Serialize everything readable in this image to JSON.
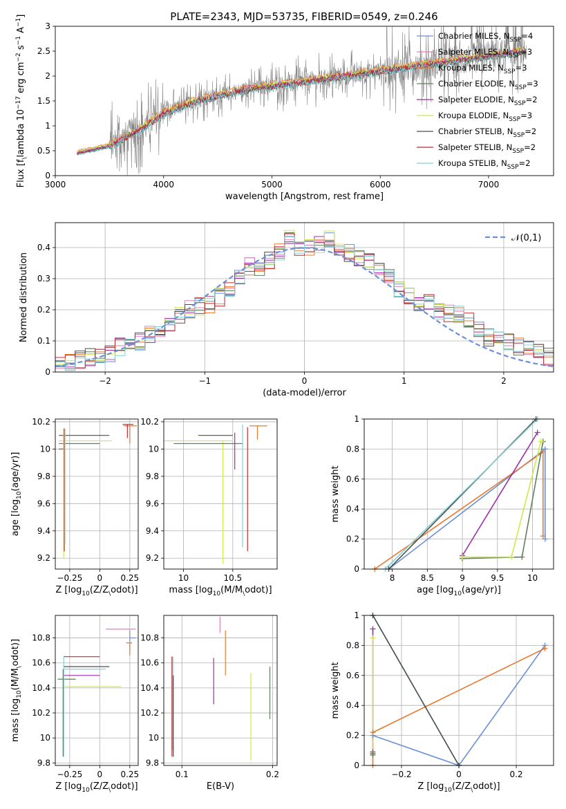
{
  "figure": {
    "title": "PLATE=2343, MJD=53735, FIBERID=0549, z=0.246"
  },
  "chart_data": [
    {
      "id": "spectrum",
      "type": "line",
      "xlabel": "wavelength [Angstrom, rest frame]",
      "ylabel": "Flux [f$_\\lambda$ 10$^{-17}$ erg cm$^{-2}$ s$^{-1}$ A$^{-1}$]",
      "xlim": [
        3000,
        7600
      ],
      "ylim": [
        0,
        3.0
      ],
      "xticks": [
        3000,
        4000,
        5000,
        6000,
        7000
      ],
      "yticks": [
        0.0,
        0.5,
        1.0,
        1.5,
        2.0,
        2.5,
        3.0
      ],
      "grid": false,
      "legend_position": "top-right",
      "data_curve": {
        "color": "#808080",
        "x": [
          3200,
          3500,
          3800,
          4000,
          4300,
          4600,
          4800,
          5000,
          5200,
          5500,
          6000,
          6500,
          7000,
          7300
        ],
        "y": [
          0.45,
          0.6,
          0.95,
          1.25,
          1.5,
          1.65,
          1.75,
          1.8,
          1.85,
          1.95,
          2.1,
          2.25,
          2.4,
          2.5
        ]
      },
      "series": [
        {
          "name": "Chabrier MILES, N$_{SSP}$=4",
          "color": "#6b8fd6",
          "offset": 0.0
        },
        {
          "name": "Salpeter MILES, N$_{SSP}$=3",
          "color": "#e07fbf",
          "offset": 0.02
        },
        {
          "name": "Kroupa MILES, N$_{SSP}$=3",
          "color": "#e8782c",
          "offset": 0.05
        },
        {
          "name": "Chabrier ELODIE, N$_{SSP}$=3",
          "color": "#5f7f5f",
          "offset": -0.03
        },
        {
          "name": "Salpeter ELODIE, N$_{SSP}$=2",
          "color": "#9a2fa8",
          "offset": 0.01
        },
        {
          "name": "Kroupa ELODIE, N$_{SSP}$=3",
          "color": "#cfe84c",
          "offset": 0.03
        },
        {
          "name": "Chabrier STELIB, N$_{SSP}$=2",
          "color": "#4d4d4d",
          "offset": -0.02
        },
        {
          "name": "Salpeter STELIB, N$_{SSP}$=2",
          "color": "#c8282c",
          "offset": -0.01
        },
        {
          "name": "Kroupa STELIB, N$_{SSP}$=2",
          "color": "#7fd3d8",
          "offset": -0.04
        }
      ]
    },
    {
      "id": "residuals",
      "type": "line",
      "xlabel": "(data-model)/error",
      "ylabel": "Normed distribution",
      "xlim": [
        -2.5,
        2.5
      ],
      "ylim": [
        0,
        0.48
      ],
      "xticks": [
        -2,
        -1,
        0,
        1,
        2
      ],
      "yticks": [
        0.0,
        0.1,
        0.2,
        0.3,
        0.4
      ],
      "grid": true,
      "legend_position": "top-right",
      "legend": "$\\mathcal{N}(0,1)$",
      "normal_color": "#6b8fd6",
      "histogram_centers": [
        -2.45,
        -2.35,
        -2.25,
        -2.15,
        -2.05,
        -1.95,
        -1.85,
        -1.75,
        -1.65,
        -1.55,
        -1.45,
        -1.35,
        -1.25,
        -1.15,
        -1.05,
        -0.95,
        -0.85,
        -0.75,
        -0.65,
        -0.55,
        -0.45,
        -0.35,
        -0.25,
        -0.15,
        -0.05,
        0.05,
        0.15,
        0.25,
        0.35,
        0.45,
        0.55,
        0.65,
        0.75,
        0.85,
        0.95,
        1.05,
        1.15,
        1.25,
        1.35,
        1.45,
        1.55,
        1.65,
        1.75,
        1.85,
        1.95,
        2.05,
        2.15,
        2.25,
        2.35,
        2.45
      ],
      "histogram_base": [
        0.02,
        0.03,
        0.04,
        0.05,
        0.05,
        0.06,
        0.08,
        0.09,
        0.1,
        0.12,
        0.13,
        0.15,
        0.18,
        0.2,
        0.21,
        0.22,
        0.24,
        0.26,
        0.3,
        0.34,
        0.33,
        0.36,
        0.39,
        0.43,
        0.4,
        0.4,
        0.41,
        0.43,
        0.39,
        0.38,
        0.37,
        0.35,
        0.33,
        0.3,
        0.27,
        0.24,
        0.22,
        0.22,
        0.2,
        0.19,
        0.19,
        0.16,
        0.14,
        0.11,
        0.1,
        0.1,
        0.08,
        0.07,
        0.06,
        0.05
      ]
    },
    {
      "id": "age-vs-Z",
      "type": "scatter",
      "xlabel": "Z [log$_{10}$(Z/Z$_\\odot$)]",
      "ylabel": "age  [log$_{10}$(age/yr)]",
      "xlim": [
        -0.37,
        0.32
      ],
      "ylim": [
        9.12,
        10.22
      ],
      "xticks": [
        -0.25,
        0.0,
        0.25
      ],
      "yticks": [
        9.2,
        9.4,
        9.6,
        9.8,
        10.0,
        10.2
      ],
      "grid": true,
      "errorbars": [
        {
          "x": -0.3,
          "y": 10.1,
          "xerr": [
            0.04,
            0.38
          ],
          "color": "#4d4d4d"
        },
        {
          "x": -0.3,
          "y": 10.0,
          "xerr": [
            0.04,
            0.0
          ],
          "yerr": [
            0.0,
            0.15
          ],
          "color": "#9a2fa8"
        },
        {
          "x": -0.3,
          "y": 10.06,
          "xerr": [
            0.04,
            0.4
          ],
          "color": "#cfe84c"
        },
        {
          "x": -0.3,
          "y": 10.04,
          "xerr": [
            0.04,
            0.3
          ],
          "color": "#5f7f5f"
        },
        {
          "x": 0.25,
          "y": 10.17,
          "xerr": [
            0.05,
            0.06
          ],
          "yerr": [
            0.13,
            0.0
          ],
          "color": "#e8782c"
        },
        {
          "x": 0.23,
          "y": 10.18,
          "xerr": [
            0.04,
            0.05
          ],
          "yerr": [
            0.1,
            0.0
          ],
          "color": "#c8282c"
        },
        {
          "x": -0.3,
          "y": 9.2,
          "yerr": [
            0.0,
            0.95
          ],
          "color": "#cfe84c"
        },
        {
          "x": -0.295,
          "y": 9.25,
          "yerr": [
            0.0,
            0.9
          ],
          "color": "#c8282c"
        },
        {
          "x": -0.29,
          "y": 9.3,
          "yerr": [
            0.0,
            0.85
          ],
          "color": "#7fd3d8"
        }
      ]
    },
    {
      "id": "age-vs-mass",
      "type": "scatter",
      "xlabel": "mass [log$_{10}$(M/M$_\\odot$)]",
      "ylabel": "",
      "xlim": [
        9.8,
        10.95
      ],
      "ylim": [
        9.12,
        10.22
      ],
      "xticks": [
        10.0,
        10.5
      ],
      "yticks": [
        9.2,
        9.4,
        9.6,
        9.8,
        10.0,
        10.2
      ],
      "grid": true,
      "errorbars": [
        {
          "x": 10.45,
          "y": 10.1,
          "xerr": [
            0.3,
            0.05
          ],
          "color": "#4d4d4d"
        },
        {
          "x": 10.4,
          "y": 10.06,
          "xerr": [
            0.6,
            0.1
          ],
          "yerr": [
            0.9,
            0.0
          ],
          "color": "#cfe84c"
        },
        {
          "x": 10.55,
          "y": 10.04,
          "xerr": [
            0.65,
            0.05
          ],
          "color": "#5f7f5f"
        },
        {
          "x": 10.6,
          "y": 10.03,
          "yerr": [
            0.75,
            0.15
          ],
          "color": "#7fd3d8"
        },
        {
          "x": 10.65,
          "y": 10.1,
          "yerr": [
            0.85,
            0.06
          ],
          "color": "#c8282c"
        },
        {
          "x": 10.75,
          "y": 10.17,
          "xerr": [
            0.08,
            0.1
          ],
          "yerr": [
            0.1,
            0.0
          ],
          "color": "#e8782c"
        },
        {
          "x": 10.52,
          "y": 10.0,
          "yerr": [
            0.15,
            0.12
          ],
          "color": "#9a2fa8"
        }
      ]
    },
    {
      "id": "massweight-vs-age",
      "type": "line",
      "xlabel": "age  [log$_{10}$(age/yr)]",
      "ylabel": "mass weight",
      "xlim": [
        7.6,
        10.3
      ],
      "ylim": [
        0,
        1.0
      ],
      "xticks": [
        8.0,
        8.5,
        9.0,
        9.5,
        10.0
      ],
      "yticks": [
        0.0,
        0.2,
        0.4,
        0.6,
        0.8,
        1.0
      ],
      "grid": true,
      "series": [
        {
          "color": "#6b8fd6",
          "x": [
            7.95,
            10.18,
            10.18
          ],
          "y": [
            0.0,
            0.8,
            0.2
          ]
        },
        {
          "color": "#e8782c",
          "x": [
            7.75,
            10.15,
            10.15
          ],
          "y": [
            0.0,
            0.78,
            0.22
          ]
        },
        {
          "color": "#5f7f5f",
          "x": [
            9.0,
            9.85,
            10.15
          ],
          "y": [
            0.07,
            0.08,
            0.85
          ]
        },
        {
          "color": "#9a2fa8",
          "x": [
            9.0,
            10.07
          ],
          "y": [
            0.09,
            0.91
          ]
        },
        {
          "color": "#cfe84c",
          "x": [
            9.0,
            9.7,
            10.12
          ],
          "y": [
            0.08,
            0.08,
            0.85
          ]
        },
        {
          "color": "#4d4d4d",
          "x": [
            7.95,
            10.05
          ],
          "y": [
            0.0,
            1.0
          ]
        },
        {
          "color": "#7fd3d8",
          "x": [
            7.9,
            10.07
          ],
          "y": [
            0.0,
            1.0
          ]
        }
      ]
    },
    {
      "id": "mass-vs-Z",
      "type": "scatter",
      "xlabel": "Z [log$_{10}$(Z/Z$_\\odot$)]",
      "ylabel": "mass [log$_{10}$(M/M$_\\odot$)]",
      "xlim": [
        -0.37,
        0.32
      ],
      "ylim": [
        9.78,
        10.98
      ],
      "xticks": [
        -0.25,
        0.0,
        0.25
      ],
      "yticks": [
        9.8,
        10.0,
        10.2,
        10.4,
        10.6,
        10.8
      ],
      "grid": true,
      "errorbars": [
        {
          "x": -0.3,
          "y": 10.65,
          "xerr": [
            0.0,
            0.3
          ],
          "yerr": [
            0.0,
            0.0
          ],
          "color": "#c8282c"
        },
        {
          "x": -0.3,
          "y": 10.57,
          "xerr": [
            0.0,
            0.38
          ],
          "color": "#4d4d4d"
        },
        {
          "x": -0.3,
          "y": 10.55,
          "xerr": [
            0.0,
            0.35
          ],
          "color": "#7fd3d8"
        },
        {
          "x": -0.3,
          "y": 10.5,
          "xerr": [
            0.0,
            0.3
          ],
          "color": "#9a2fa8"
        },
        {
          "x": -0.32,
          "y": 10.47,
          "xerr": [
            0.03,
            0.12
          ],
          "color": "#5f7f5f"
        },
        {
          "x": -0.3,
          "y": 10.41,
          "xerr": [
            0.0,
            0.48
          ],
          "color": "#cfe84c"
        },
        {
          "x": -0.3,
          "y": 9.9,
          "yerr": [
            0.05,
            0.75
          ],
          "color": "#7fd3d8"
        },
        {
          "x": -0.305,
          "y": 9.85,
          "yerr": [
            0.0,
            0.7
          ],
          "color": "#5f7f5f"
        },
        {
          "x": 0.2,
          "y": 10.87,
          "xerr": [
            0.15,
            0.1
          ],
          "color": "#e07fbf"
        },
        {
          "x": 0.25,
          "y": 10.8,
          "xerr": [
            0.0,
            0.05
          ],
          "yerr": [
            0.1,
            0.06
          ],
          "color": "#6b8fd6"
        },
        {
          "x": 0.25,
          "y": 10.76,
          "xerr": [
            0.03,
            0.02
          ],
          "yerr": [
            0.1,
            0.0
          ],
          "color": "#e8782c"
        }
      ]
    },
    {
      "id": "mass-vs-ebv",
      "type": "scatter",
      "xlabel": "E(B-V)",
      "ylabel": "",
      "xlim": [
        0.08,
        0.205
      ],
      "ylim": [
        9.78,
        10.98
      ],
      "xticks": [
        0.1,
        0.2
      ],
      "yticks": [
        9.8,
        10.0,
        10.2,
        10.4,
        10.6,
        10.8
      ],
      "grid": true,
      "errorbars": [
        {
          "x": 0.09,
          "y": 10.3,
          "yerr": [
            0.4,
            0.35
          ],
          "color": "#7fd3d8"
        },
        {
          "x": 0.089,
          "y": 10.25,
          "yerr": [
            0.4,
            0.4
          ],
          "color": "#c8282c"
        },
        {
          "x": 0.0905,
          "y": 10.2,
          "yerr": [
            0.35,
            0.3
          ],
          "color": "#4d4d4d"
        },
        {
          "x": 0.135,
          "y": 10.47,
          "yerr": [
            0.2,
            0.17
          ],
          "color": "#9a2fa8"
        },
        {
          "x": 0.142,
          "y": 10.92,
          "yerr": [
            0.08,
            0.05
          ],
          "color": "#e07fbf"
        },
        {
          "x": 0.148,
          "y": 10.68,
          "yerr": [
            0.18,
            0.18
          ],
          "color": "#e8782c"
        },
        {
          "x": 0.176,
          "y": 10.17,
          "yerr": [
            0.35,
            0.35
          ],
          "color": "#cfe84c"
        },
        {
          "x": 0.197,
          "y": 10.35,
          "yerr": [
            0.2,
            0.22
          ],
          "color": "#5f7f5f"
        }
      ]
    },
    {
      "id": "massweight-vs-Z",
      "type": "line",
      "xlabel": "Z [log$_{10}$(Z/Z$_\\odot$)]",
      "ylabel": "mass weight",
      "xlim": [
        -0.33,
        0.33
      ],
      "ylim": [
        0,
        1.0
      ],
      "xticks": [
        -0.2,
        0.0,
        0.2
      ],
      "yticks": [
        0.0,
        0.2,
        0.4,
        0.6,
        0.8,
        1.0
      ],
      "grid": true,
      "series": [
        {
          "color": "#6b8fd6",
          "x": [
            -0.3,
            0.0,
            0.3
          ],
          "y": [
            0.2,
            0.0,
            0.8
          ]
        },
        {
          "color": "#e8782c",
          "x": [
            -0.3,
            -0.3,
            0.3
          ],
          "y": [
            0.0,
            0.22,
            0.78
          ]
        },
        {
          "color": "#7fd3d8",
          "x": [
            -0.3,
            0.0
          ],
          "y": [
            1.0,
            0.0
          ]
        },
        {
          "color": "#4d4d4d",
          "x": [
            -0.3,
            -0.0
          ],
          "y": [
            1.0,
            0.0
          ]
        },
        {
          "color": "#9a2fa8",
          "x": [
            -0.3,
            -0.3
          ],
          "y": [
            0.09,
            0.91
          ]
        },
        {
          "color": "#cfe84c",
          "x": [
            -0.3,
            -0.3
          ],
          "y": [
            0.08,
            0.85
          ]
        },
        {
          "color": "#5f7f5f",
          "x": [
            -0.3,
            -0.3
          ],
          "y": [
            0.07,
            0.08
          ]
        }
      ]
    }
  ]
}
